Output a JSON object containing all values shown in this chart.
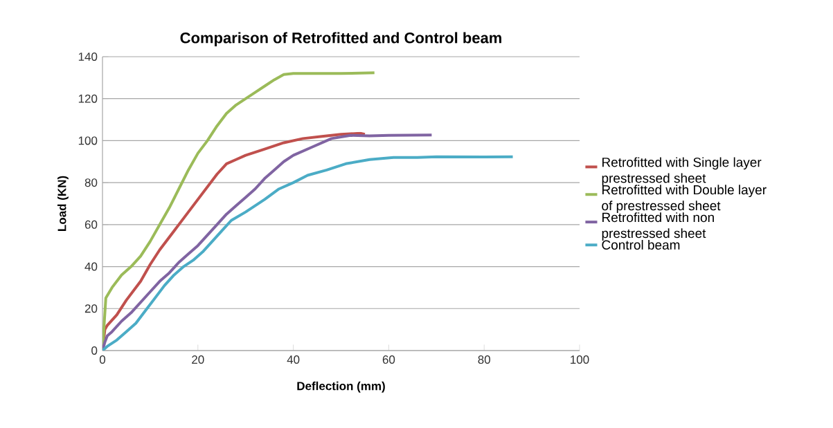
{
  "chart_data": {
    "type": "line",
    "title": "Comparison of  Retrofitted and Control beam",
    "xlabel": "Deflection (mm)",
    "ylabel": "Load (KN)",
    "xlim": [
      0,
      100
    ],
    "xticks": [
      0,
      20,
      40,
      60,
      80,
      100
    ],
    "ylim": [
      0,
      140
    ],
    "yticks": [
      0,
      20,
      40,
      60,
      80,
      100,
      120,
      140
    ],
    "grid": "y",
    "legend": "right",
    "series": [
      {
        "name": "Retrofitted with Single layer prestressed sheet",
        "color": "#c0504d",
        "x": [
          0,
          0.5,
          1,
          3,
          5,
          8,
          10,
          12,
          14,
          16,
          18,
          20,
          22,
          24,
          26,
          28,
          30,
          34,
          38,
          42,
          46,
          50,
          54,
          55
        ],
        "values": [
          0,
          10,
          12,
          17,
          24,
          33,
          41,
          48,
          54,
          60,
          66,
          72,
          78,
          84,
          89,
          91,
          93,
          96,
          99,
          101,
          102,
          103,
          103.5,
          103
        ]
      },
      {
        "name": "Retrofitted with Double layer of prestressed sheet",
        "color": "#9bbb59",
        "x": [
          0,
          0.7,
          2,
          4,
          6,
          8,
          10,
          12,
          14,
          16,
          18,
          20,
          22,
          24,
          26,
          28,
          30,
          32,
          34,
          36,
          38,
          40,
          45,
          50,
          57
        ],
        "values": [
          0,
          25,
          30,
          36,
          40,
          45,
          52,
          60,
          68,
          77,
          86,
          94,
          100,
          107,
          113,
          117,
          120,
          123,
          126,
          129,
          131.5,
          132,
          132,
          132,
          132.3
        ]
      },
      {
        "name": "Retrofitted with non prestressed sheet",
        "color": "#8064a2",
        "x": [
          0,
          0.5,
          1,
          2,
          4,
          6,
          8,
          10,
          12,
          14,
          16,
          18,
          20,
          22,
          24,
          26,
          28,
          30,
          32,
          34,
          36,
          38,
          40,
          44,
          48,
          52,
          56,
          60,
          69
        ],
        "values": [
          0,
          4,
          7,
          9,
          14,
          18,
          23,
          28,
          33,
          37,
          42,
          46,
          50,
          55,
          60,
          65,
          69,
          73,
          77,
          82,
          86,
          90,
          93,
          97,
          101,
          102.5,
          102.3,
          102.5,
          102.7
        ]
      },
      {
        "name": "Control beam",
        "color": "#4bacc6",
        "x": [
          0,
          1,
          3,
          5,
          7,
          9,
          11,
          13,
          15,
          17,
          19,
          21,
          23,
          25,
          27,
          30,
          34,
          37,
          40,
          43,
          47,
          51,
          56,
          61,
          66,
          70,
          80,
          86
        ],
        "values": [
          0,
          2,
          5,
          9,
          13,
          19,
          25,
          31,
          36,
          40,
          43,
          47,
          52,
          57,
          62,
          66,
          72,
          77,
          80,
          83.5,
          86,
          89,
          91,
          92,
          92,
          92.3,
          92.2,
          92.3
        ]
      }
    ]
  }
}
